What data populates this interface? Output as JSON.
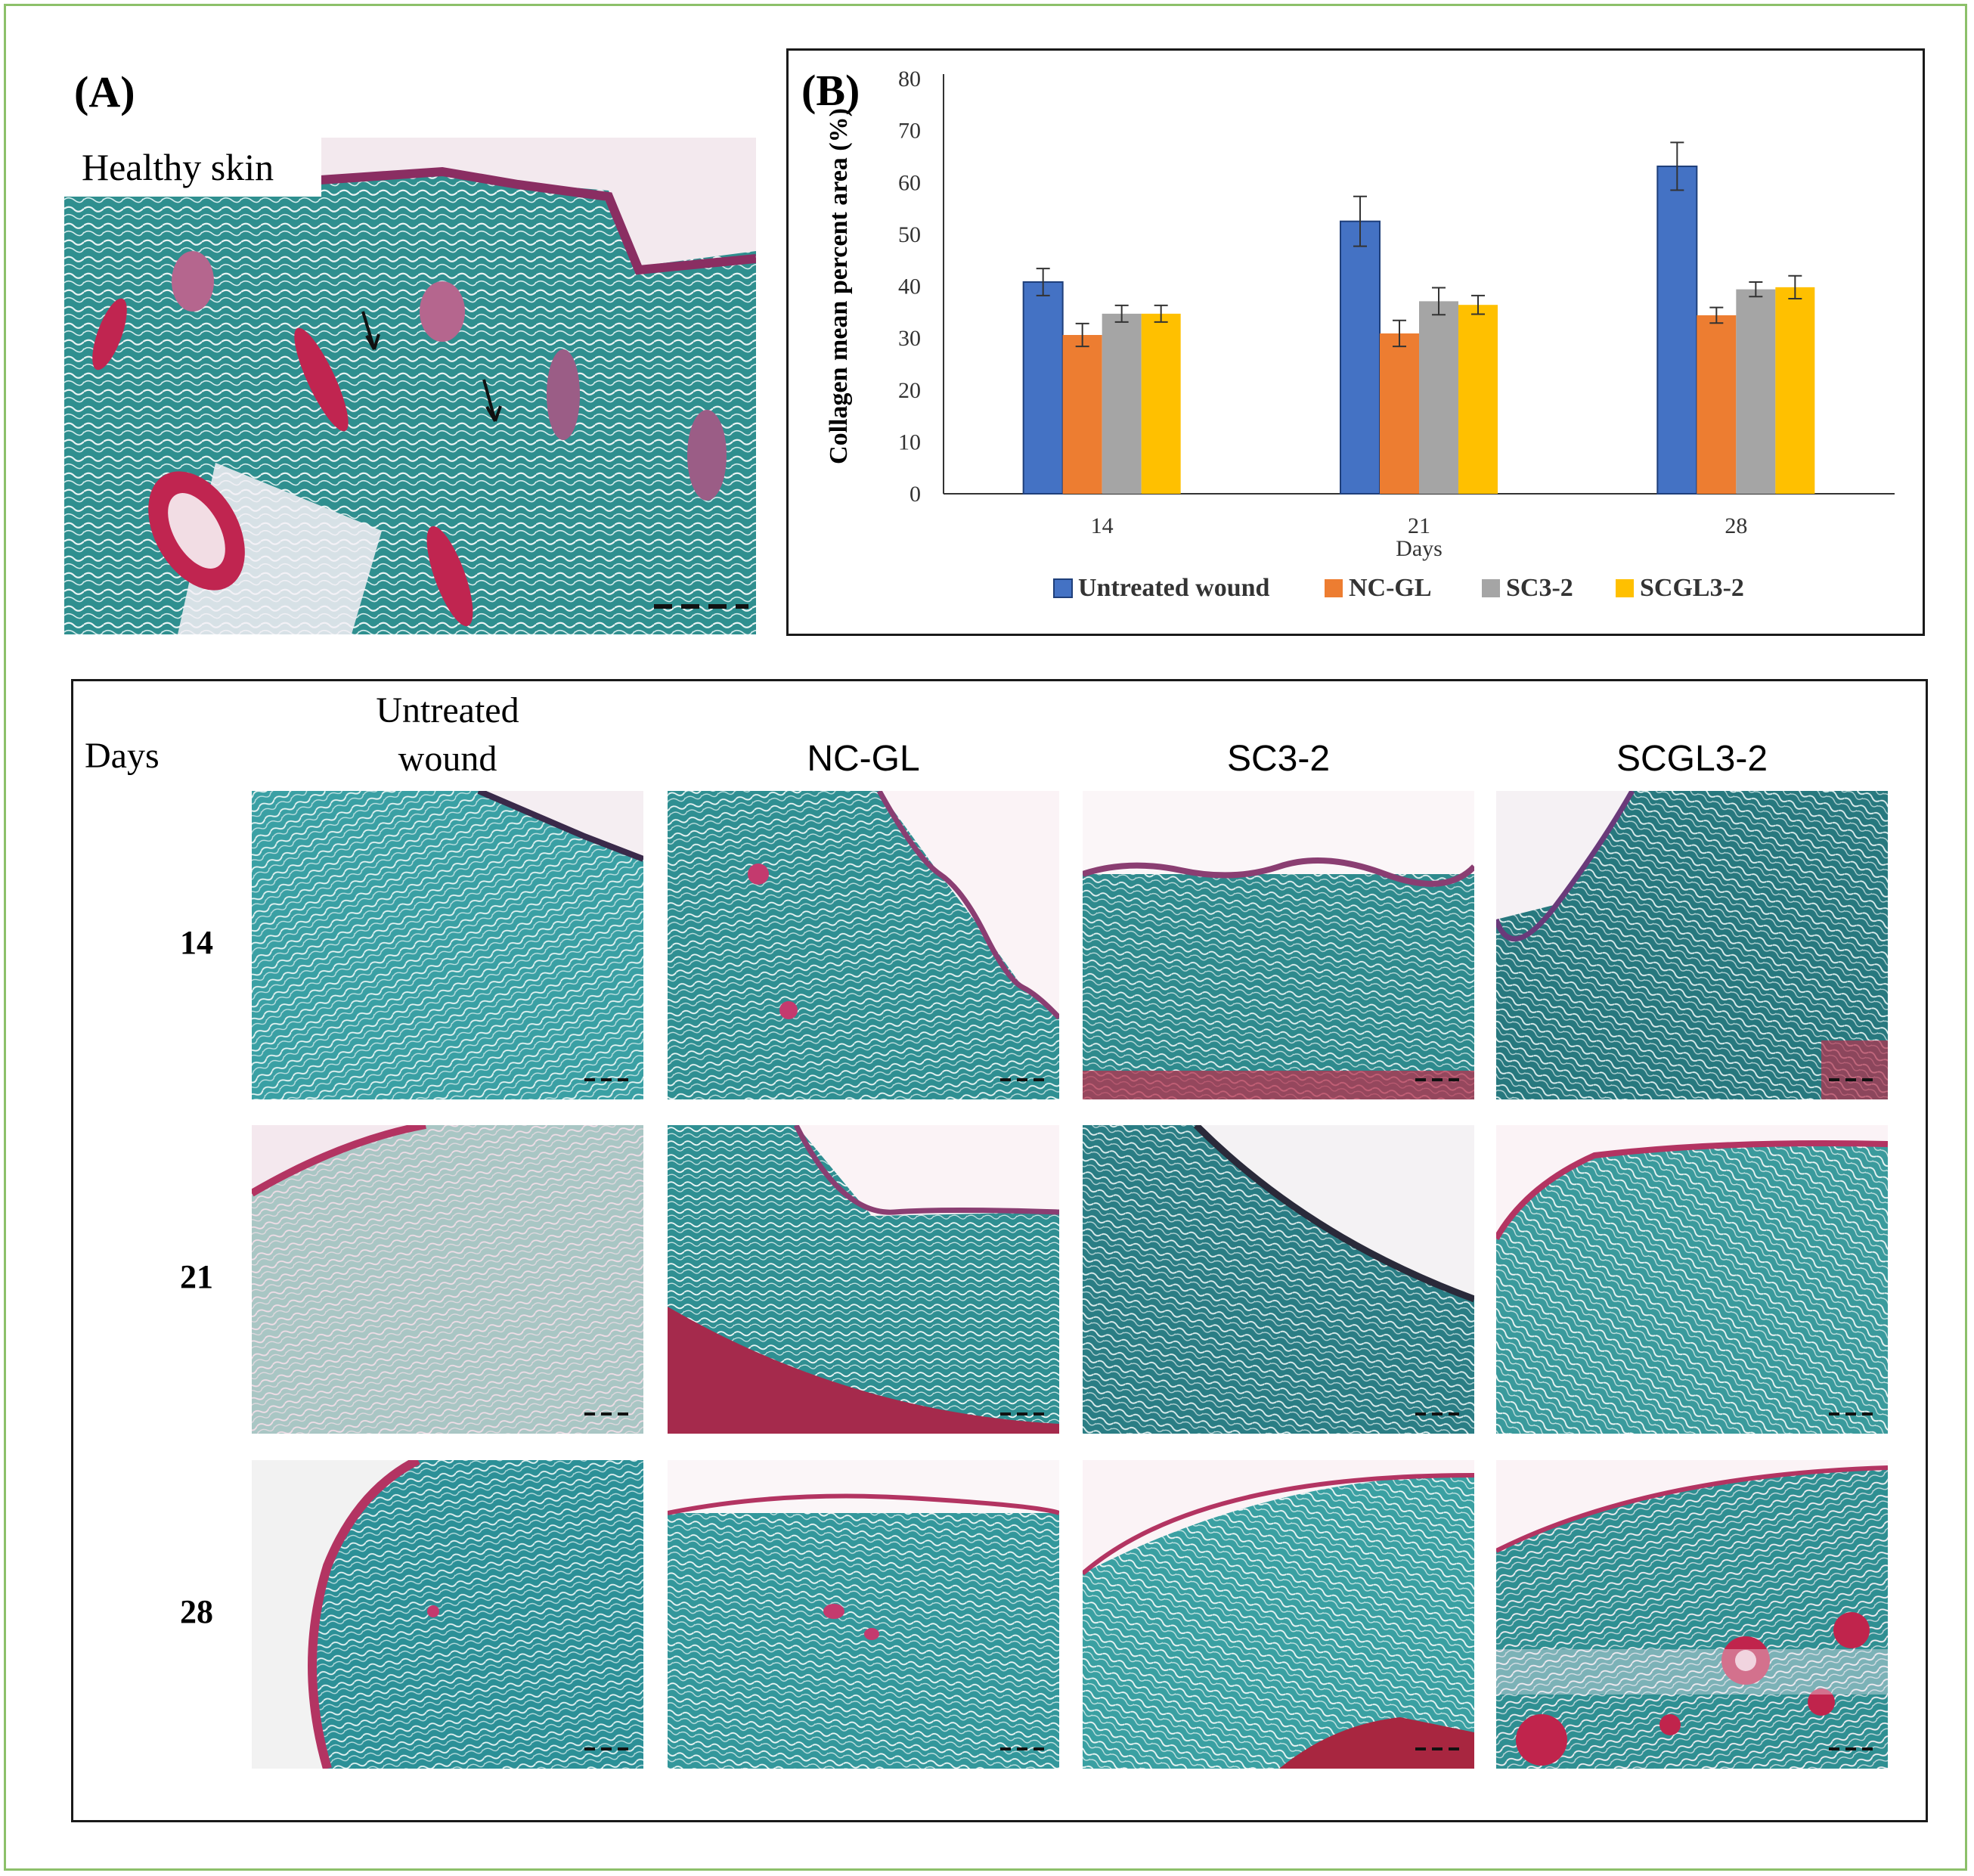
{
  "panel_a": {
    "label": "(A)",
    "caption": "Healthy skin"
  },
  "panel_b": {
    "label": "(B)"
  },
  "chart_data": {
    "type": "bar",
    "categories": [
      "14",
      "21",
      "28"
    ],
    "series": [
      {
        "name": "Untreated wound",
        "color": "#4472c4",
        "values": [
          40.8,
          52.5,
          63.1
        ],
        "errors": [
          2.6,
          4.8,
          4.6
        ]
      },
      {
        "name": "NC-GL",
        "color": "#ed7d31",
        "values": [
          30.6,
          30.9,
          34.4
        ],
        "errors": [
          2.2,
          2.5,
          1.5
        ]
      },
      {
        "name": "SC3-2",
        "color": "#a5a5a5",
        "values": [
          34.7,
          37.1,
          39.4
        ],
        "errors": [
          1.6,
          2.6,
          1.4
        ]
      },
      {
        "name": "SCGL3-2",
        "color": "#ffc000",
        "values": [
          34.7,
          36.4,
          39.8
        ],
        "errors": [
          1.6,
          1.8,
          2.2
        ]
      }
    ],
    "xlabel": "Days",
    "ylabel": "Collagen mean percent area (%)",
    "ylim": [
      0,
      80
    ],
    "yticks": [
      "0",
      "10",
      "20",
      "30",
      "40",
      "50",
      "60",
      "70",
      "80"
    ],
    "grid": false,
    "legend_position": "bottom"
  },
  "grid_panel": {
    "days_label": "Days",
    "columns": [
      "Untreated\nwound",
      "NC-GL",
      "SC3-2",
      "SCGL3-2"
    ],
    "rows": [
      "14",
      "21",
      "28"
    ]
  },
  "colors": {
    "frame_green": "#8cc06a",
    "stain_teal": "#3a9a9c",
    "stain_magenta": "#b0306a"
  }
}
